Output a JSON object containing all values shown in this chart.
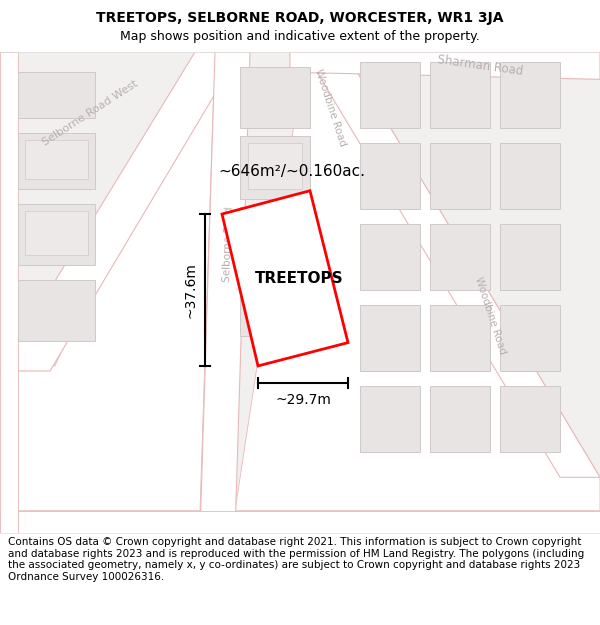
{
  "title": "TREETOPS, SELBORNE ROAD, WORCESTER, WR1 3JA",
  "subtitle": "Map shows position and indicative extent of the property.",
  "footer": "Contains OS data © Crown copyright and database right 2021. This information is subject to Crown copyright and database rights 2023 and is reproduced with the permission of HM Land Registry. The polygons (including the associated geometry, namely x, y co-ordinates) are subject to Crown copyright and database rights 2023 Ordnance Survey 100026316.",
  "area_label": "~646m²/~0.160ac.",
  "property_label": "TREETOPS",
  "width_label": "~29.7m",
  "height_label": "~37.6m",
  "map_bg": "#f2efef",
  "road_fill": "#ffffff",
  "road_edge": "#e8b8b8",
  "building_fill": "#e8e4e4",
  "building_edge": "#d0c8c8",
  "building_inner_fill": "#ede9e9",
  "plot_color": "#ff0000",
  "road_label_color": "#b8b0b0",
  "title_fontsize": 10,
  "subtitle_fontsize": 9,
  "footer_fontsize": 7.5
}
